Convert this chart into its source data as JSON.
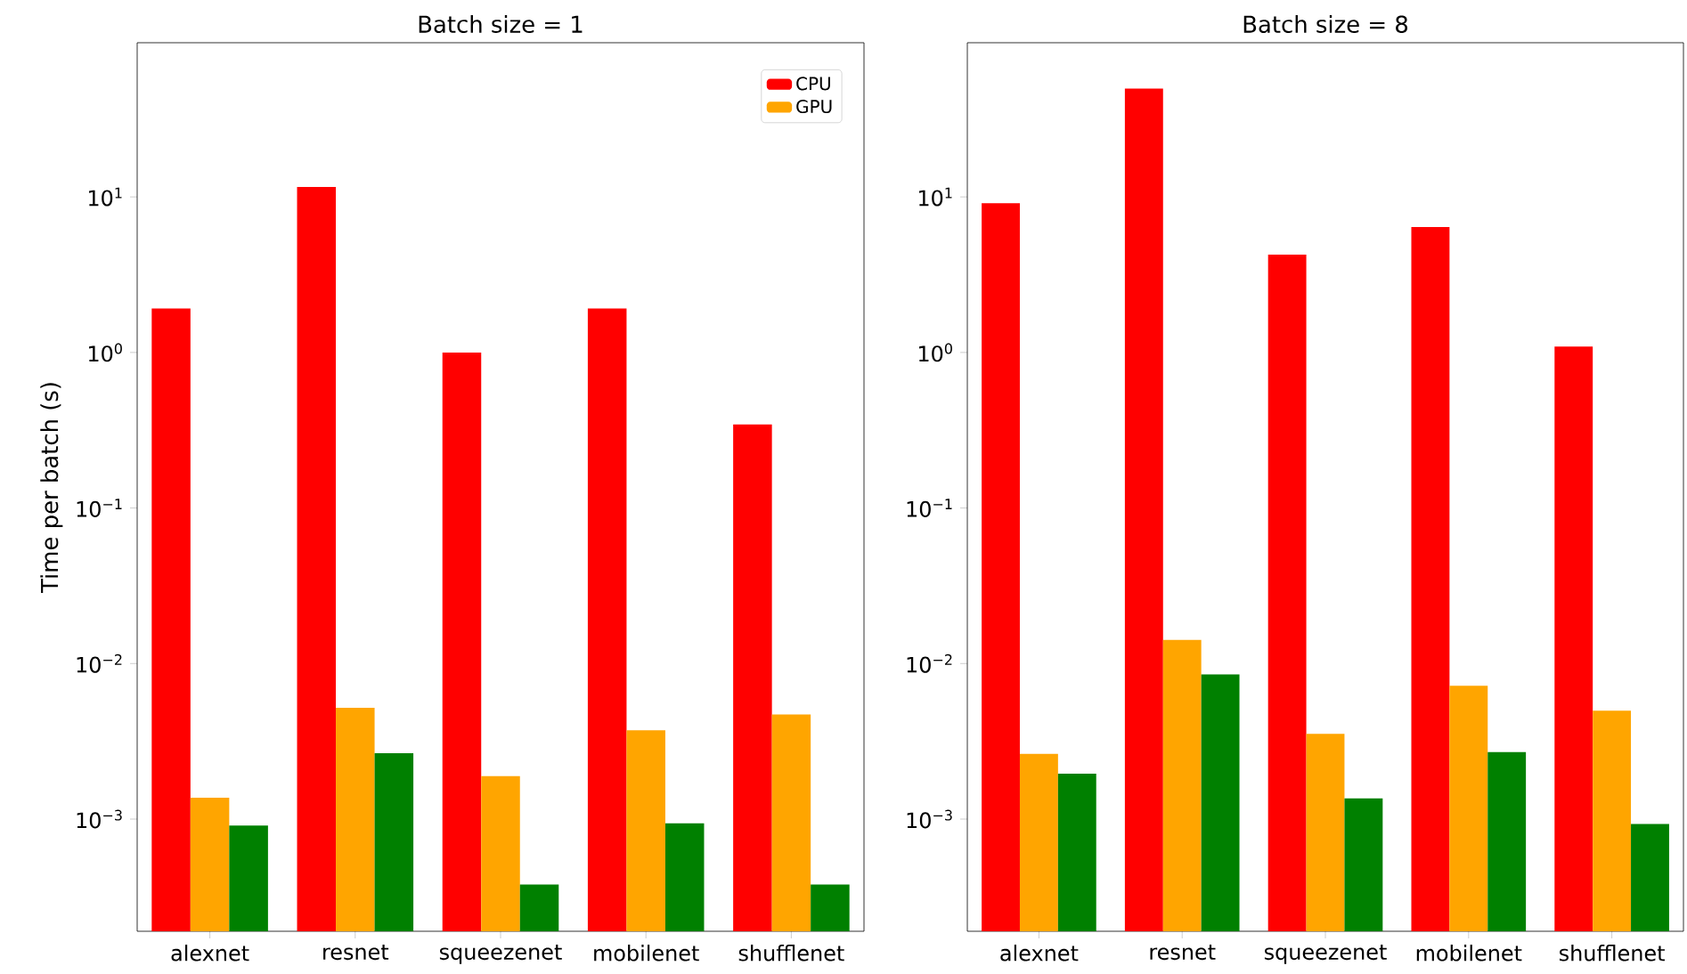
{
  "chart_data": [
    {
      "type": "bar",
      "title": "Batch size = 1",
      "ylabel": "Time per batch (s)",
      "categories": [
        "alexnet",
        "resnet",
        "squeezenet",
        "mobilenet",
        "shufflenet"
      ],
      "log": "y",
      "ylim": [
        0.00019,
        98
      ],
      "yticks": [
        {
          "value": 0.001,
          "label": "10$^{−3}$"
        },
        {
          "value": 0.01,
          "label": "10$^{−2}$"
        },
        {
          "value": 0.1,
          "label": "10$^{−1}$"
        },
        {
          "value": 1,
          "label": "10$^{0}$"
        },
        {
          "value": 10,
          "label": "10$^{1}$"
        }
      ],
      "legend": "top right",
      "series": [
        {
          "name": "CPU",
          "color": "#ff0000",
          "values": [
            1.92,
            11.6,
            1.0,
            1.92,
            0.344
          ]
        },
        {
          "name": "GPU",
          "color": "#ffa500",
          "values": [
            0.00137,
            0.0052,
            0.00189,
            0.00373,
            0.0047
          ]
        },
        {
          "color": "#008000",
          "values": [
            0.00091,
            0.00265,
            0.00038,
            0.00094,
            0.00038
          ]
        }
      ]
    },
    {
      "type": "bar",
      "title": "Batch size = 8",
      "categories": [
        "alexnet",
        "resnet",
        "squeezenet",
        "mobilenet",
        "shufflenet"
      ],
      "log": "y",
      "ylim": [
        0.00019,
        98
      ],
      "yticks": [
        {
          "value": 0.001,
          "label": "10$^{−3}$"
        },
        {
          "value": 0.01,
          "label": "10$^{−2}$"
        },
        {
          "value": 0.1,
          "label": "10$^{−1}$"
        },
        {
          "value": 1,
          "label": "10$^{0}$"
        },
        {
          "value": 10,
          "label": "10$^{1}$"
        }
      ],
      "series": [
        {
          "color": "#ff0000",
          "values": [
            9.1,
            49.7,
            4.25,
            6.4,
            1.09
          ]
        },
        {
          "color": "#ffa500",
          "values": [
            0.00263,
            0.0142,
            0.00353,
            0.0072,
            0.00497
          ]
        },
        {
          "color": "#008000",
          "values": [
            0.00196,
            0.0085,
            0.00136,
            0.0027,
            0.00093
          ]
        }
      ]
    }
  ]
}
